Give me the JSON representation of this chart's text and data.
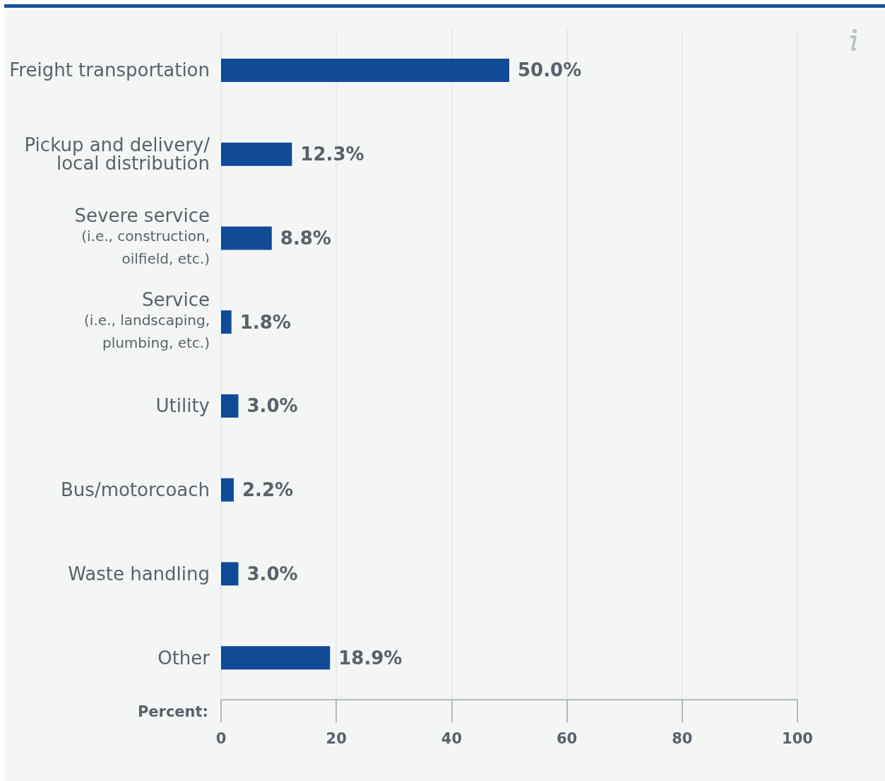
{
  "chart_data": {
    "type": "bar",
    "orientation": "horizontal",
    "xlabel": "Percent:",
    "categories": [
      "Freight transportation",
      "Pickup and delivery/\nlocal distribution",
      "Severe service\n(i.e., construction,\noilfield, etc.)",
      "Service\n(i.e., landscaping,\nplumbing, etc.)",
      "Utility",
      "Bus/motorcoach",
      "Waste handling",
      "Other"
    ],
    "values": [
      50.0,
      12.3,
      8.8,
      1.8,
      3.0,
      2.2,
      3.0,
      18.9
    ],
    "value_labels": [
      "50.0%",
      "12.3%",
      "8.8%",
      "1.8%",
      "3.0%",
      "2.2%",
      "3.0%",
      "18.9%"
    ],
    "color": "#114a96",
    "xlim": [
      0,
      100
    ],
    "xticks": [
      0,
      20,
      40,
      60,
      80,
      100
    ],
    "grid": "x"
  }
}
